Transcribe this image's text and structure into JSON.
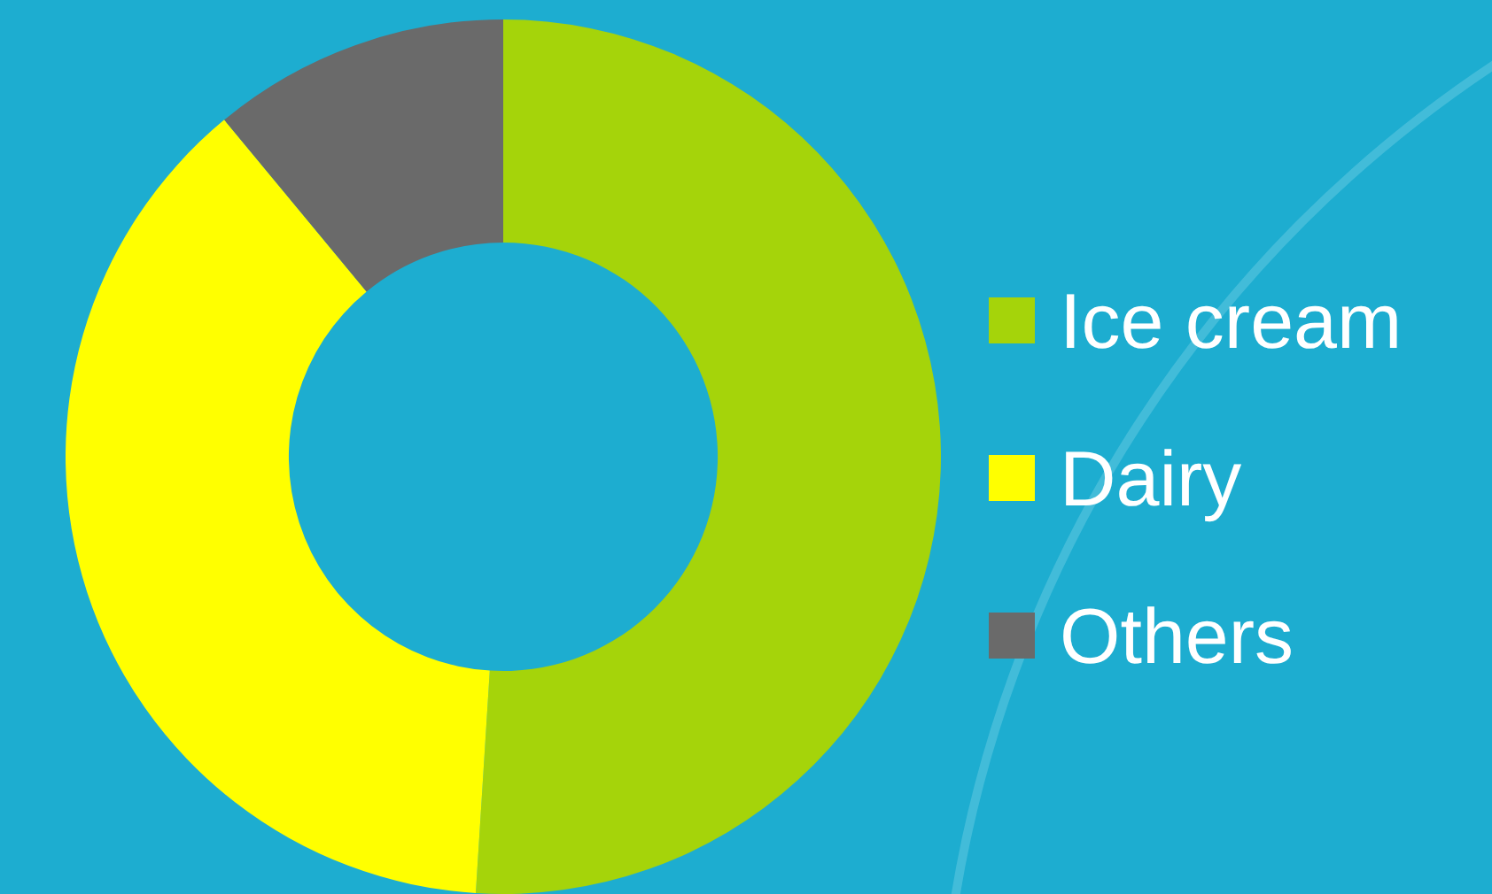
{
  "chart_data": {
    "type": "donut",
    "categories": [
      "Ice cream",
      "Dairy",
      "Others"
    ],
    "values": [
      51,
      38,
      11
    ],
    "colors": [
      "#a5d40a",
      "#ffff00",
      "#6a6a6a"
    ],
    "legend": "right"
  }
}
